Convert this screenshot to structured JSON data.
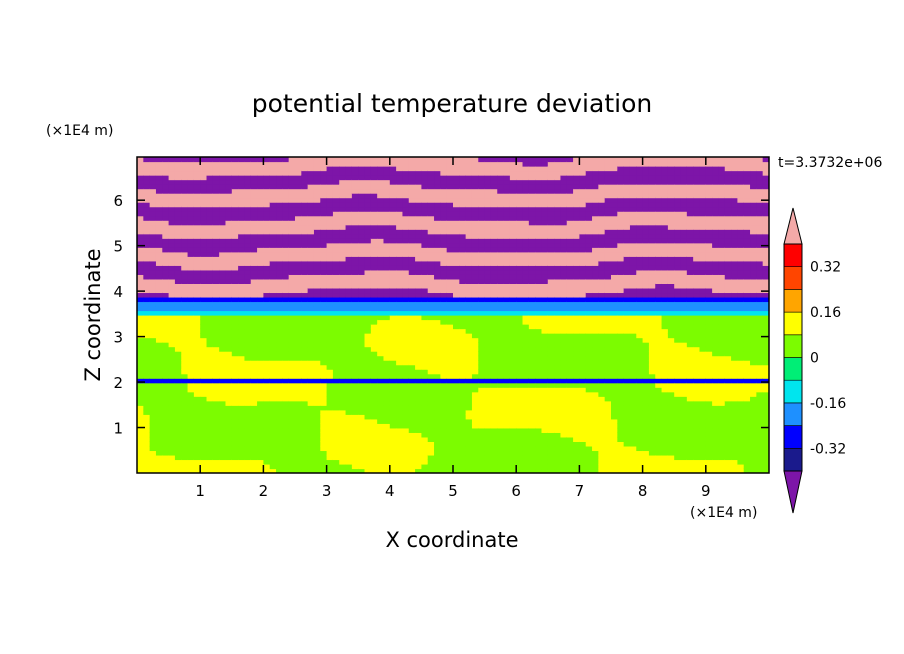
{
  "chart_data": {
    "type": "heatmap",
    "title": "potential temperature deviation",
    "xlabel": "X coordinate",
    "ylabel": "Z coordinate",
    "x_unit": "(×1E4 m)",
    "y_unit": "(×1E4 m)",
    "time_label": "t=3.3732e+06",
    "xlim": [
      0,
      10
    ],
    "ylim": [
      0,
      6.95
    ],
    "x_ticks": [
      1,
      2,
      3,
      4,
      5,
      6,
      7,
      8,
      9
    ],
    "y_ticks": [
      1,
      2,
      3,
      4,
      5,
      6
    ],
    "colorbar": {
      "boundaries": [
        -0.4,
        -0.32,
        -0.24,
        -0.16,
        -0.08,
        0,
        0.08,
        0.16,
        0.24,
        0.32,
        0.4
      ],
      "labels": [
        "-0.32",
        "-0.16",
        "0",
        "0.16",
        "0.32"
      ],
      "label_values": [
        -0.32,
        -0.16,
        0,
        0.16,
        0.32
      ],
      "colors": [
        "#1a1a8c",
        "#0000ff",
        "#1e90ff",
        "#00e5ee",
        "#00ee76",
        "#7cfc00",
        "#ffff00",
        "#ffa500",
        "#ff4500",
        "#ff0000"
      ],
      "under_color": "#7d15a8",
      "over_color": "#f4a9a8"
    },
    "regions": [
      {
        "z_min": 0.0,
        "z_max": 2.0,
        "field": "mix",
        "values": [
          0.04,
          0.09
        ],
        "description_values": "alternating green and yellow-green patches"
      },
      {
        "z_min": 2.0,
        "z_max": 2.05,
        "field": "band",
        "values": [
          -0.3
        ]
      },
      {
        "z_min": 2.05,
        "z_max": 3.5,
        "field": "mix",
        "values": [
          0.04,
          0.09
        ]
      },
      {
        "z_min": 3.5,
        "z_max": 3.6,
        "field": "band",
        "values": [
          -0.12
        ]
      },
      {
        "z_min": 3.6,
        "z_max": 3.75,
        "field": "band",
        "values": [
          -0.2
        ]
      },
      {
        "z_min": 3.75,
        "z_max": 3.9,
        "field": "band",
        "values": [
          -0.3
        ]
      },
      {
        "z_min": 3.9,
        "z_max": 6.95,
        "field": "stripes",
        "values": [
          -0.45,
          0.45
        ]
      }
    ]
  }
}
